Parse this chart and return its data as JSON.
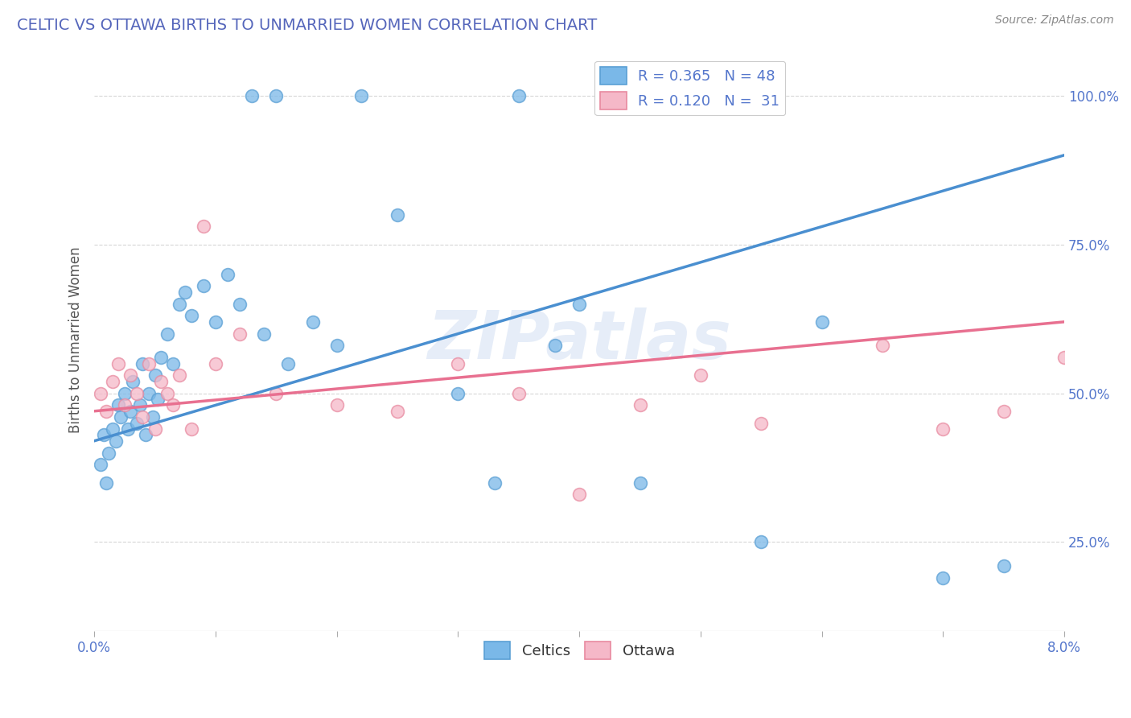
{
  "title": "CELTIC VS OTTAWA BIRTHS TO UNMARRIED WOMEN CORRELATION CHART",
  "source": "Source: ZipAtlas.com",
  "ylabel": "Births to Unmarried Women",
  "xlim": [
    0.0,
    8.0
  ],
  "ylim": [
    10.0,
    108.0
  ],
  "celtics_color": "#7ab8e8",
  "celtics_edge_color": "#5a9fd4",
  "ottawa_color": "#f5b8c8",
  "ottawa_edge_color": "#e88aa0",
  "celtics_line_color": "#4a8fd0",
  "ottawa_line_color": "#e87090",
  "legend_label_celtics": "R = 0.365   N = 48",
  "legend_label_ottawa": "R = 0.120   N =  31",
  "watermark": "ZIPatlas",
  "background_color": "#ffffff",
  "grid_color": "#cccccc",
  "axis_label_color": "#5577cc",
  "title_color": "#5566bb",
  "celtics_x": [
    0.05,
    0.08,
    0.1,
    0.12,
    0.15,
    0.18,
    0.2,
    0.22,
    0.25,
    0.28,
    0.3,
    0.32,
    0.35,
    0.38,
    0.4,
    0.42,
    0.45,
    0.48,
    0.5,
    0.52,
    0.55,
    0.6,
    0.65,
    0.7,
    0.75,
    0.8,
    0.9,
    1.0,
    1.1,
    1.2,
    1.3,
    1.4,
    1.5,
    1.6,
    1.8,
    2.0,
    2.2,
    2.5,
    3.0,
    3.3,
    3.5,
    3.8,
    4.0,
    4.5,
    5.5,
    6.0,
    7.0,
    7.5
  ],
  "celtics_y": [
    38,
    43,
    35,
    40,
    44,
    42,
    48,
    46,
    50,
    44,
    47,
    52,
    45,
    48,
    55,
    43,
    50,
    46,
    53,
    49,
    56,
    60,
    55,
    65,
    67,
    63,
    68,
    62,
    70,
    65,
    100,
    60,
    100,
    55,
    62,
    58,
    100,
    80,
    50,
    35,
    100,
    58,
    65,
    35,
    25,
    62,
    19,
    21
  ],
  "ottawa_x": [
    0.05,
    0.1,
    0.15,
    0.2,
    0.25,
    0.3,
    0.35,
    0.4,
    0.45,
    0.5,
    0.55,
    0.6,
    0.65,
    0.7,
    0.8,
    0.9,
    1.0,
    1.2,
    1.5,
    2.0,
    2.5,
    3.0,
    3.5,
    4.5,
    5.0,
    5.5,
    6.5,
    7.0,
    7.5,
    8.0,
    4.0
  ],
  "ottawa_y": [
    50,
    47,
    52,
    55,
    48,
    53,
    50,
    46,
    55,
    44,
    52,
    50,
    48,
    53,
    44,
    78,
    55,
    60,
    50,
    48,
    47,
    55,
    50,
    48,
    53,
    45,
    58,
    44,
    47,
    56,
    33
  ]
}
